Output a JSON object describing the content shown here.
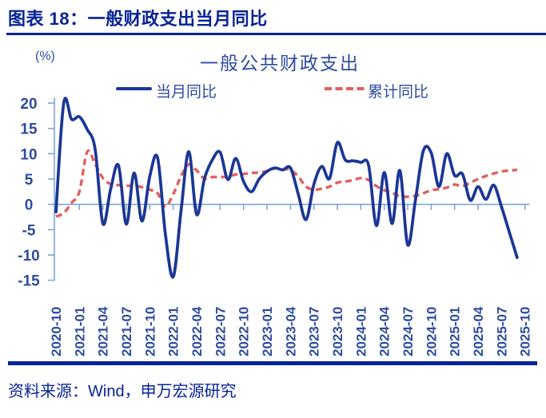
{
  "header": {
    "title": "图表 18：一般财政支出当月同比"
  },
  "footer": {
    "source": "资料来源：Wind，申万宏源研究"
  },
  "colors": {
    "navy": "#082396",
    "label_blue": "#2D4BA0",
    "axis_light_blue": "#7DA5D7",
    "series_monthly": "#1B3696",
    "series_cumulative": "#E25F5F"
  },
  "chart_data": {
    "type": "line",
    "title": "一般公共财政支出",
    "unit_label": "(%)",
    "ylabel": "%",
    "ylim": [
      -15,
      21
    ],
    "y_ticks": [
      20,
      15,
      10,
      5,
      0,
      -5,
      -10,
      -15
    ],
    "grid": "zero-line-only",
    "legend_position": "top",
    "x_tick_labels": [
      "2020-10",
      "2021-01",
      "2021-04",
      "2021-07",
      "2021-10",
      "2022-01",
      "2022-04",
      "2022-07",
      "2022-10",
      "2023-01",
      "2023-04",
      "2023-07",
      "2023-10",
      "2024-01",
      "2024-04",
      "2024-07",
      "2024-10",
      "2025-01",
      "2025-04",
      "2025-07",
      "2025-10"
    ],
    "x": [
      "2020-10",
      "2020-11",
      "2020-12",
      "2021-01",
      "2021-02",
      "2021-03",
      "2021-04",
      "2021-05",
      "2021-06",
      "2021-07",
      "2021-08",
      "2021-09",
      "2021-10",
      "2021-11",
      "2021-12",
      "2022-01",
      "2022-02",
      "2022-03",
      "2022-04",
      "2022-05",
      "2022-06",
      "2022-07",
      "2022-08",
      "2022-09",
      "2022-10",
      "2022-11",
      "2022-12",
      "2023-01",
      "2023-02",
      "2023-03",
      "2023-04",
      "2023-05",
      "2023-06",
      "2023-07",
      "2023-08",
      "2023-09",
      "2023-10",
      "2023-11",
      "2023-12",
      "2024-01",
      "2024-02",
      "2024-03",
      "2024-04",
      "2024-05",
      "2024-06",
      "2024-07",
      "2024-08",
      "2024-09",
      "2024-10",
      "2024-11",
      "2024-12",
      "2025-01",
      "2025-02",
      "2025-03",
      "2025-04",
      "2025-05",
      "2025-06",
      "2025-07",
      "2025-08",
      "2025-09",
      "2025-10"
    ],
    "series": [
      {
        "name": "当月同比",
        "style": "solid",
        "color": "#1B3696",
        "values": [
          -1.5,
          20.1,
          16.8,
          17.3,
          14.8,
          11.0,
          -3.8,
          3.0,
          7.7,
          -3.9,
          6.2,
          -3.3,
          5.5,
          9.2,
          -5.9,
          -14.3,
          -1.2,
          10.4,
          -2.0,
          5.1,
          8.8,
          10.3,
          4.9,
          9.1,
          4.5,
          2.5,
          5.0,
          6.5,
          7.2,
          6.8,
          7.2,
          2.0,
          -3.0,
          4.0,
          7.5,
          5.1,
          12.2,
          8.8,
          8.6,
          8.3,
          7.7,
          -4.2,
          6.3,
          -3.8,
          6.7,
          -8.0,
          1.0,
          10.6,
          10.2,
          3.5,
          10.0,
          5.7,
          6.0,
          0.8,
          3.5,
          1.0,
          3.8,
          -0.5,
          -5.5,
          -10.5,
          null
        ]
      },
      {
        "name": "累计同比",
        "style": "dashed",
        "color": "#E25F5F",
        "values": [
          -2.4,
          -1.7,
          0.3,
          2.5,
          10.4,
          8.0,
          5.2,
          4.0,
          3.8,
          3.7,
          3.6,
          3.4,
          2.9,
          2.2,
          -0.4,
          2.0,
          5.6,
          7.9,
          6.7,
          5.1,
          5.4,
          5.4,
          5.5,
          5.9,
          6.0,
          6.2,
          6.3,
          6.6,
          7.1,
          7.0,
          6.8,
          5.5,
          3.5,
          2.9,
          3.1,
          3.5,
          4.3,
          4.5,
          4.8,
          5.2,
          4.8,
          3.6,
          2.8,
          2.3,
          1.6,
          1.5,
          1.7,
          2.2,
          2.8,
          3.0,
          3.3,
          3.9,
          3.6,
          4.3,
          5.0,
          5.6,
          6.1,
          6.5,
          6.7,
          6.8,
          null
        ]
      }
    ]
  }
}
